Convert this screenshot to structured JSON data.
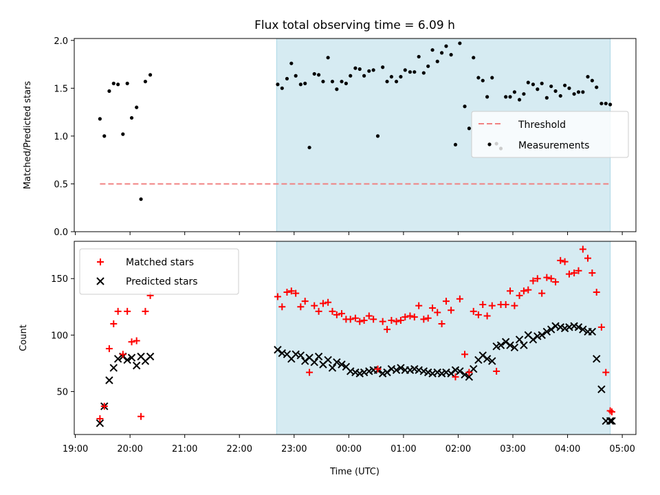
{
  "title": "Flux total observing time = 6.09 h",
  "xlabel": "Time (UTC)",
  "colors": {
    "shade": "#add8e6",
    "threshold": "#f08080",
    "matched": "#ff0000",
    "measurement": "#000000"
  },
  "chart_data": [
    {
      "type": "scatter",
      "ylabel": "Matched/Predicted stars",
      "xlim_hours": [
        18.98,
        29.25
      ],
      "ylim": [
        0,
        2.02
      ],
      "shaded_interval_hours": [
        22.68,
        28.78
      ],
      "yticks": [
        0.0,
        0.5,
        1.0,
        1.5,
        2.0
      ],
      "ytick_labels": [
        "0.0",
        "0.5",
        "1.0",
        "1.5",
        "2.0"
      ],
      "legend": {
        "location": "center-right",
        "entries": [
          "Threshold",
          "Measurements"
        ]
      },
      "threshold": {
        "name": "Threshold",
        "y": 0.5,
        "x_range_hours": [
          19.45,
          28.75
        ]
      },
      "series": [
        {
          "name": "Measurements",
          "x": [
            19.45,
            19.53,
            19.62,
            19.7,
            19.78,
            19.87,
            19.95,
            20.03,
            20.12,
            20.2,
            20.28,
            20.37,
            22.7,
            22.78,
            22.87,
            22.95,
            23.03,
            23.12,
            23.2,
            23.28,
            23.37,
            23.45,
            23.53,
            23.62,
            23.7,
            23.78,
            23.87,
            23.95,
            24.03,
            24.12,
            24.2,
            24.28,
            24.37,
            24.45,
            24.53,
            24.62,
            24.7,
            24.78,
            24.87,
            24.95,
            25.03,
            25.12,
            25.2,
            25.28,
            25.37,
            25.45,
            25.53,
            25.62,
            25.7,
            25.78,
            25.87,
            25.95,
            26.03,
            26.12,
            26.2,
            26.28,
            26.37,
            26.45,
            26.53,
            26.62,
            26.7,
            26.78,
            26.87,
            26.95,
            27.03,
            27.12,
            27.2,
            27.28,
            27.37,
            27.45,
            27.53,
            27.62,
            27.7,
            27.78,
            27.87,
            27.95,
            28.03,
            28.12,
            28.2,
            28.28,
            28.37,
            28.45,
            28.53,
            28.62,
            28.7,
            28.78
          ],
          "y": [
            1.18,
            1.0,
            1.47,
            1.55,
            1.54,
            1.02,
            1.55,
            1.19,
            1.3,
            0.34,
            1.57,
            1.64,
            1.54,
            1.5,
            1.6,
            1.76,
            1.63,
            1.54,
            1.55,
            0.88,
            1.65,
            1.64,
            1.57,
            1.82,
            1.57,
            1.49,
            1.57,
            1.55,
            1.63,
            1.71,
            1.7,
            1.63,
            1.68,
            1.69,
            1.0,
            1.72,
            1.57,
            1.62,
            1.57,
            1.62,
            1.69,
            1.67,
            1.67,
            1.83,
            1.66,
            1.73,
            1.9,
            1.78,
            1.87,
            1.94,
            1.85,
            0.91,
            1.97,
            1.31,
            1.08,
            1.82,
            1.61,
            1.58,
            1.41,
            1.61,
            0.92,
            0.87,
            1.41,
            1.41,
            1.46,
            1.38,
            1.44,
            1.56,
            1.54,
            1.49,
            1.55,
            1.4,
            1.52,
            1.47,
            1.42,
            1.53,
            1.5,
            1.44,
            1.46,
            1.46,
            1.62,
            1.58,
            1.51,
            1.34,
            1.34,
            1.33
          ]
        }
      ]
    },
    {
      "type": "scatter",
      "ylabel": "Count",
      "xlim_hours": [
        18.98,
        29.25
      ],
      "ylim": [
        12,
        183
      ],
      "shaded_interval_hours": [
        22.68,
        28.78
      ],
      "yticks": [
        50,
        100,
        150
      ],
      "ytick_labels": [
        "50",
        "100",
        "150"
      ],
      "xticks_hours": [
        19,
        20,
        21,
        22,
        23,
        24,
        25,
        26,
        27,
        28,
        29
      ],
      "xtick_labels": [
        "19:00",
        "20:00",
        "21:00",
        "22:00",
        "23:00",
        "00:00",
        "01:00",
        "02:00",
        "03:00",
        "04:00",
        "05:00"
      ],
      "legend": {
        "location": "top-left",
        "entries": [
          "Matched stars",
          "Predicted stars"
        ]
      },
      "series": [
        {
          "name": "Matched stars",
          "x": [
            19.45,
            19.53,
            19.62,
            19.7,
            19.78,
            19.87,
            19.95,
            20.03,
            20.12,
            20.2,
            20.28,
            20.37,
            22.7,
            22.78,
            22.87,
            22.95,
            23.03,
            23.12,
            23.2,
            23.28,
            23.37,
            23.45,
            23.53,
            23.62,
            23.7,
            23.78,
            23.87,
            23.95,
            24.03,
            24.12,
            24.2,
            24.28,
            24.37,
            24.45,
            24.53,
            24.62,
            24.7,
            24.78,
            24.87,
            24.95,
            25.03,
            25.12,
            25.2,
            25.28,
            25.37,
            25.45,
            25.53,
            25.62,
            25.7,
            25.78,
            25.87,
            25.95,
            26.03,
            26.12,
            26.2,
            26.28,
            26.37,
            26.45,
            26.53,
            26.62,
            26.7,
            26.78,
            26.87,
            26.95,
            27.03,
            27.12,
            27.2,
            27.28,
            27.37,
            27.45,
            27.53,
            27.62,
            27.7,
            27.78,
            27.87,
            27.95,
            28.03,
            28.12,
            28.2,
            28.28,
            28.37,
            28.45,
            28.53,
            28.62,
            28.7,
            28.78,
            28.81
          ],
          "y": [
            26,
            37,
            88,
            110,
            121,
            83,
            121,
            94,
            95,
            28,
            121,
            135,
            134,
            125,
            138,
            139,
            137,
            125,
            130,
            67,
            126,
            121,
            128,
            129,
            121,
            118,
            119,
            114,
            114,
            115,
            112,
            113,
            117,
            114,
            70,
            112,
            105,
            113,
            112,
            113,
            116,
            117,
            116,
            126,
            114,
            115,
            124,
            120,
            110,
            130,
            122,
            63,
            132,
            83,
            67,
            121,
            118,
            127,
            117,
            126,
            68,
            127,
            127,
            139,
            126,
            135,
            139,
            140,
            148,
            150,
            137,
            151,
            150,
            147,
            166,
            165,
            154,
            155,
            157,
            176,
            168,
            155,
            138,
            107,
            67,
            33,
            32
          ]
        },
        {
          "name": "Predicted stars",
          "x": [
            19.45,
            19.53,
            19.62,
            19.7,
            19.78,
            19.87,
            19.95,
            20.03,
            20.12,
            20.2,
            20.28,
            20.37,
            22.7,
            22.78,
            22.87,
            22.95,
            23.03,
            23.12,
            23.2,
            23.28,
            23.37,
            23.45,
            23.53,
            23.62,
            23.7,
            23.78,
            23.87,
            23.95,
            24.03,
            24.12,
            24.2,
            24.28,
            24.37,
            24.45,
            24.53,
            24.62,
            24.7,
            24.78,
            24.87,
            24.95,
            25.03,
            25.12,
            25.2,
            25.28,
            25.37,
            25.45,
            25.53,
            25.62,
            25.7,
            25.78,
            25.87,
            25.95,
            26.03,
            26.12,
            26.2,
            26.28,
            26.37,
            26.45,
            26.53,
            26.62,
            26.7,
            26.78,
            26.87,
            26.95,
            27.03,
            27.12,
            27.2,
            27.28,
            27.37,
            27.45,
            27.53,
            27.62,
            27.7,
            27.78,
            27.87,
            27.95,
            28.03,
            28.12,
            28.2,
            28.28,
            28.37,
            28.45,
            28.53,
            28.62,
            28.7,
            28.78,
            28.81
          ],
          "y": [
            22,
            37,
            60,
            71,
            79,
            81,
            78,
            80,
            73,
            81,
            77,
            81,
            87,
            84,
            83,
            79,
            83,
            82,
            77,
            80,
            76,
            81,
            74,
            78,
            71,
            76,
            74,
            72,
            68,
            67,
            66,
            67,
            68,
            69,
            69,
            66,
            67,
            70,
            69,
            71,
            69,
            69,
            70,
            69,
            68,
            67,
            66,
            67,
            66,
            67,
            66,
            69,
            68,
            65,
            63,
            70,
            78,
            82,
            79,
            77,
            90,
            91,
            94,
            91,
            89,
            96,
            91,
            100,
            96,
            99,
            100,
            103,
            105,
            108,
            107,
            106,
            107,
            108,
            107,
            105,
            103,
            103,
            79,
            52,
            24,
            24,
            24
          ]
        }
      ]
    }
  ]
}
